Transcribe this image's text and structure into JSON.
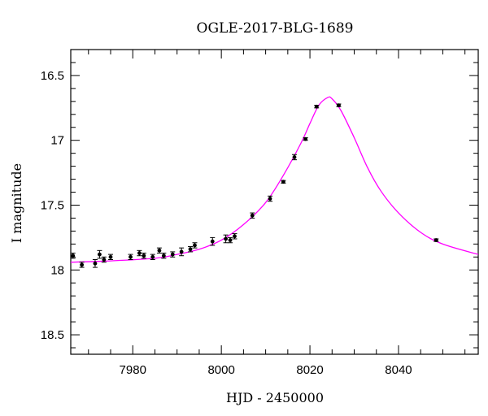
{
  "chart_data": {
    "type": "scatter",
    "title": "OGLE-2017-BLG-1689",
    "xlabel": "HJD - 2450000",
    "ylabel": "I magnitude",
    "xlim": [
      7966,
      8058
    ],
    "ylim": [
      18.65,
      16.3
    ],
    "y_inverted": true,
    "grid": false,
    "x_ticks": [
      7980,
      8000,
      8020,
      8040
    ],
    "x_tick_labels": [
      "7980",
      "8000",
      "8020",
      "8040"
    ],
    "y_ticks": [
      16.5,
      17,
      17.5,
      18,
      18.5
    ],
    "y_tick_labels": [
      "16.5",
      "17",
      "17.5",
      "18",
      "18.5"
    ],
    "model_color": "#ff00ff",
    "point_color": "#000000",
    "series": [
      {
        "type": "scatter",
        "x": [
          7966.5,
          7968.5,
          7971.5,
          7972.5,
          7973.5,
          7975.0,
          7979.5,
          7981.5,
          7982.5,
          7984.5,
          7986.0,
          7987.0,
          7989.0,
          7991.0,
          7993.0,
          7994.0,
          7998.0,
          8001.0,
          8002.0,
          8003.0,
          8007.0,
          8011.0,
          8014.0,
          8016.5,
          8019.0,
          8021.5,
          8026.5,
          8048.5
        ],
        "y": [
          17.89,
          17.96,
          17.95,
          17.88,
          17.92,
          17.9,
          17.9,
          17.87,
          17.89,
          17.9,
          17.85,
          17.89,
          17.88,
          17.86,
          17.84,
          17.81,
          17.78,
          17.76,
          17.77,
          17.74,
          17.58,
          17.45,
          17.32,
          17.13,
          16.99,
          16.74,
          16.73,
          17.77
        ],
        "yerr": [
          0.02,
          0.02,
          0.03,
          0.03,
          0.02,
          0.02,
          0.02,
          0.02,
          0.02,
          0.02,
          0.02,
          0.02,
          0.02,
          0.03,
          0.02,
          0.02,
          0.03,
          0.03,
          0.02,
          0.02,
          0.02,
          0.02,
          0.01,
          0.02,
          0.01,
          0.01,
          0.01,
          0.01
        ]
      },
      {
        "type": "line",
        "x": [
          7966,
          7975,
          7985,
          7990,
          7995,
          8000,
          8005,
          8010,
          8014,
          8018,
          8020,
          8022,
          8024,
          8025,
          8027,
          8030,
          8033,
          8036,
          8040,
          8045,
          8050,
          8058
        ],
        "y": [
          17.94,
          17.93,
          17.91,
          17.88,
          17.84,
          17.77,
          17.65,
          17.48,
          17.27,
          17.02,
          16.87,
          16.73,
          16.67,
          16.68,
          16.77,
          16.98,
          17.21,
          17.39,
          17.56,
          17.71,
          17.8,
          17.88
        ]
      }
    ]
  }
}
